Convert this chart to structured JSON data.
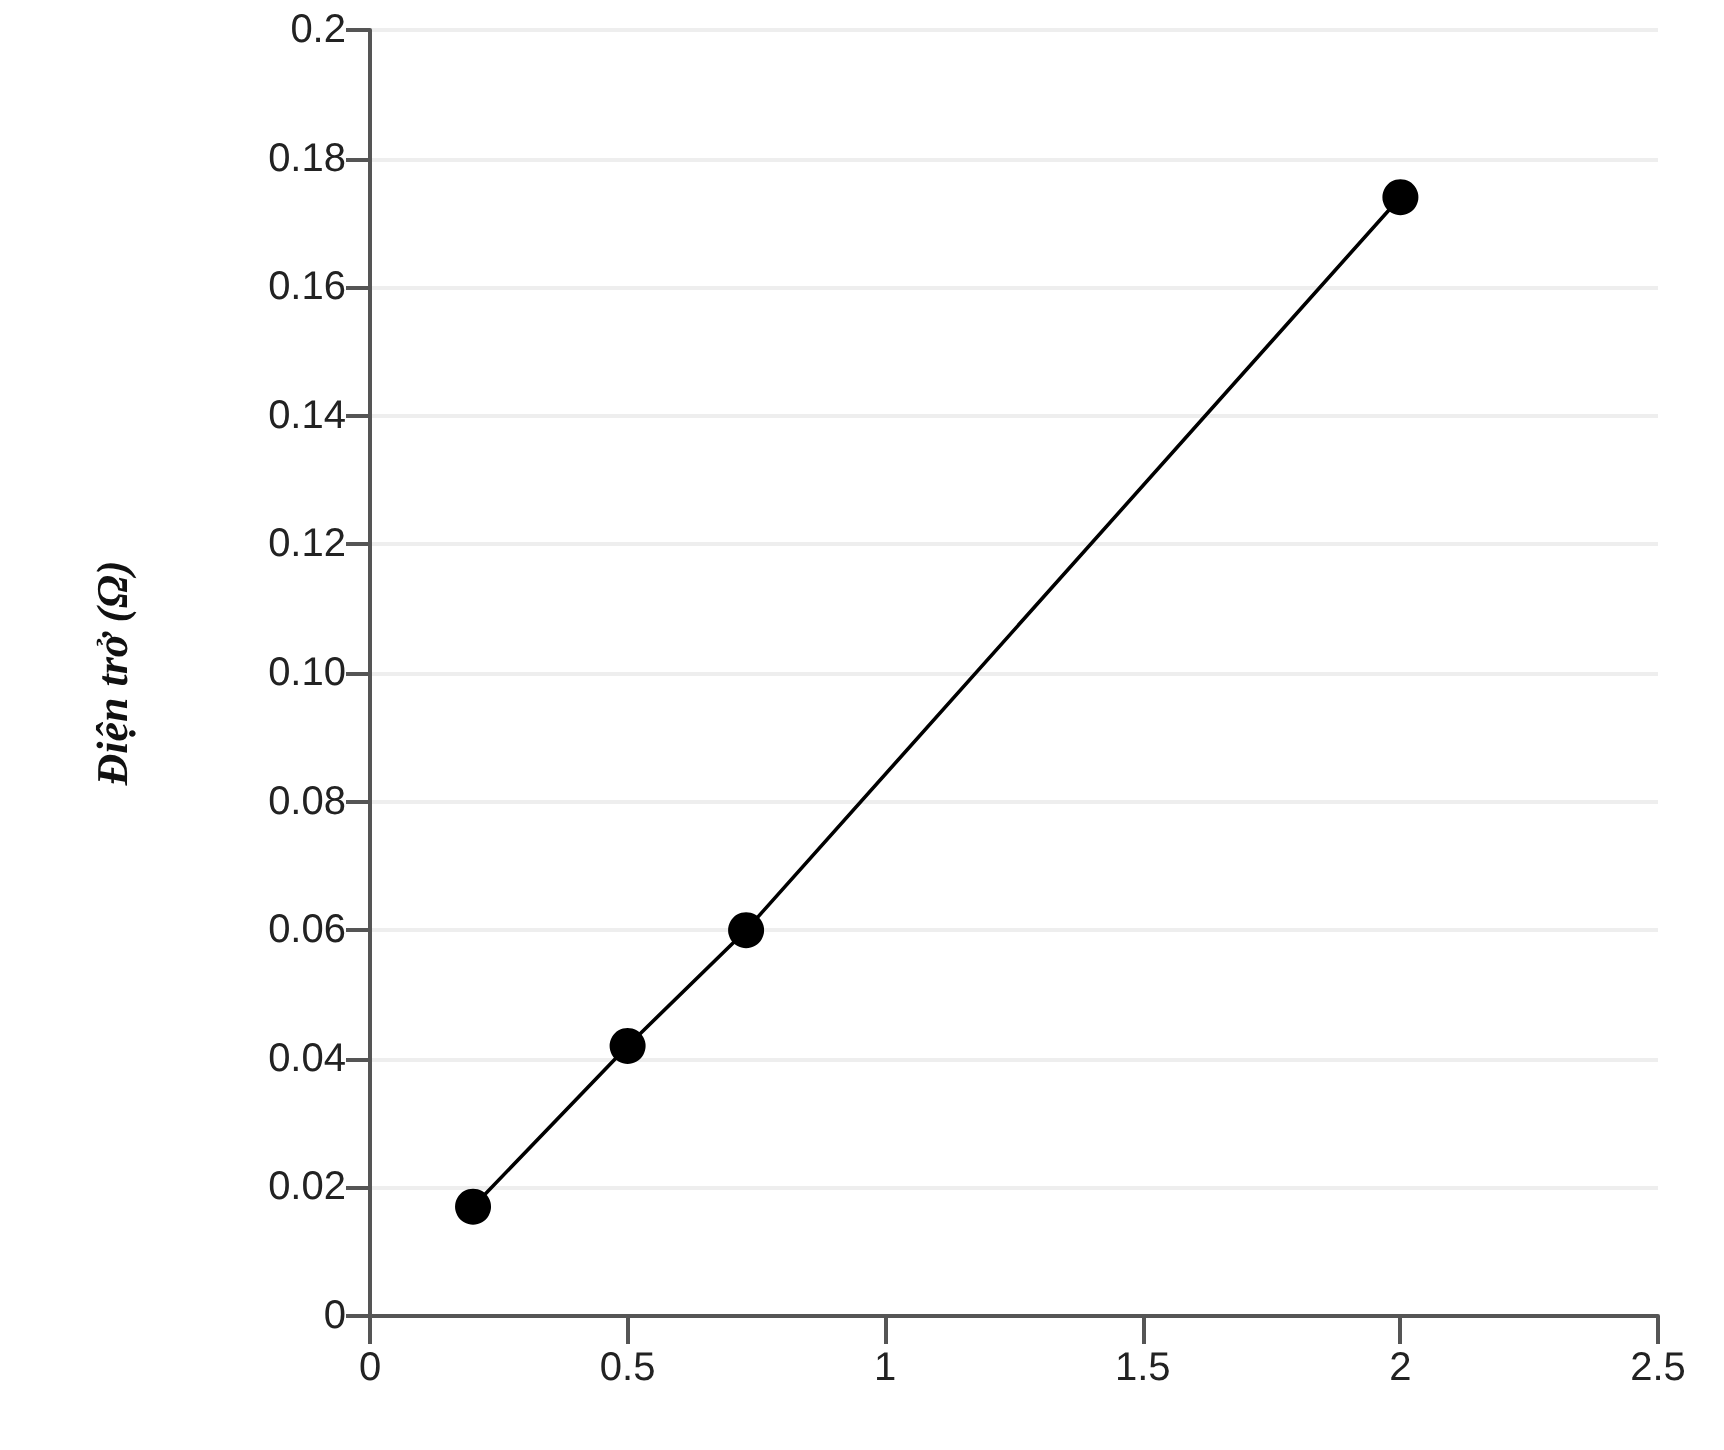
{
  "chart_data": {
    "type": "line",
    "ylabel": "Điện trở (Ω)",
    "x": [
      0.2,
      0.5,
      0.73,
      2.0
    ],
    "series": [
      {
        "color": "#000000",
        "values": [
          0.017,
          0.042,
          0.06,
          0.174
        ]
      }
    ],
    "xlim": [
      0,
      2.5
    ],
    "xticks": [
      0,
      0.5,
      1,
      1.5,
      2,
      2.5
    ],
    "ylim": [
      0,
      0.2
    ],
    "yticks": [
      0,
      0.02,
      0.04,
      0.06,
      0.08,
      {
        "value": 0.1,
        "label": "0.10"
      },
      0.12,
      0.14,
      0.16,
      0.18,
      0.2
    ],
    "grid": "y",
    "marker": "circle",
    "line_style": "solid"
  }
}
